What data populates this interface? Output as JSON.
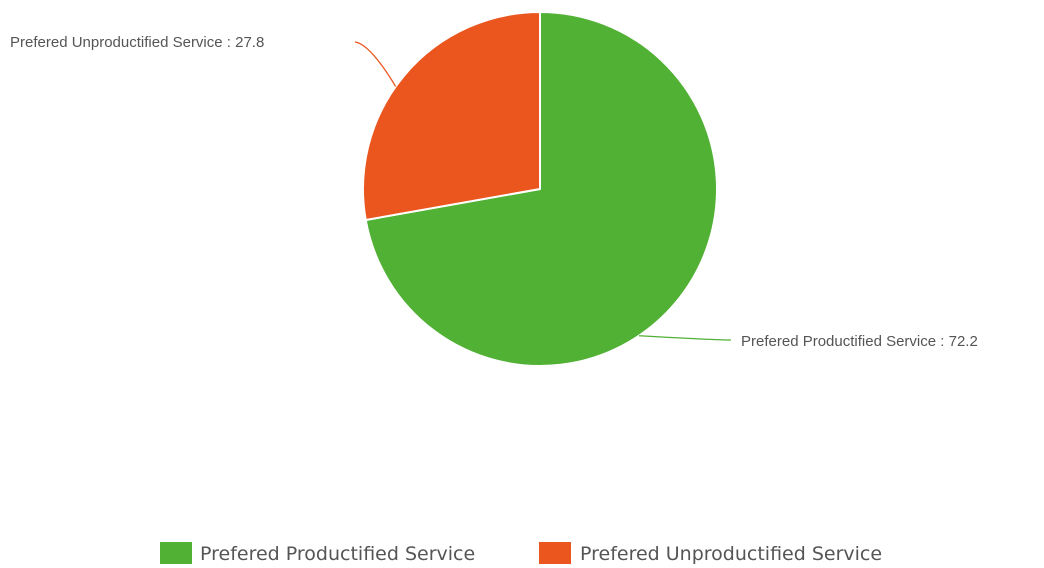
{
  "chart_data": {
    "type": "pie",
    "categories": [
      "Prefered Productified Service",
      "Prefered Unproductified Service"
    ],
    "values": [
      72.2,
      27.8
    ],
    "colors": [
      "#51b135",
      "#ea561e"
    ],
    "start_angle": "12 o'clock",
    "direction": "clockwise",
    "legend_position": "bottom-center",
    "data_labels": [
      {
        "series": "Prefered Productified Service",
        "text": "Prefered Productified Service : 72.2"
      },
      {
        "series": "Prefered Unproductified Service",
        "text": "Prefered Unproductified Service : 27.8"
      }
    ],
    "legend": [
      {
        "label": "Prefered Productified Service",
        "color": "#51b135"
      },
      {
        "label": "Prefered Unproductified Service",
        "color": "#ea561e"
      }
    ]
  }
}
